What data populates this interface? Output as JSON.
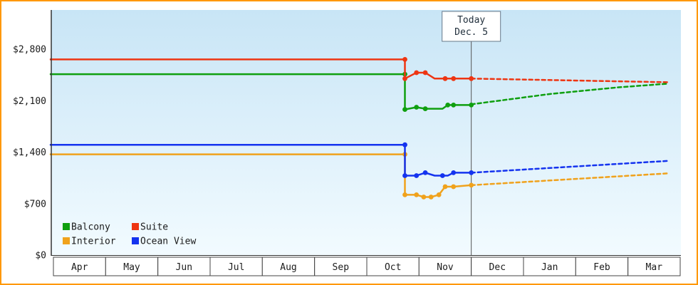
{
  "frame": {
    "border_color": "#ff9800",
    "background": "#ffffff"
  },
  "today_marker": {
    "line1": "Today",
    "line2": "Dec. 5",
    "month_position": 8.0,
    "box_border_color": "#66788a",
    "line_color": "#555555"
  },
  "plot_style": {
    "bg_gradient_top": "#c8e5f6",
    "bg_gradient_bottom": "#f2fbff",
    "axis_color": "#333333",
    "month_cell_border": "#444444",
    "month_cell_fill": "#ffffff"
  },
  "chart_data": {
    "type": "line",
    "ylim": [
      0,
      2800
    ],
    "yticks": [
      {
        "value": 0,
        "label": "$0"
      },
      {
        "value": 700,
        "label": "$700"
      },
      {
        "value": 1400,
        "label": "$1,400"
      },
      {
        "value": 2100,
        "label": "$2,100"
      },
      {
        "value": 2800,
        "label": "$2,800"
      }
    ],
    "x_months": [
      "Apr",
      "May",
      "Jun",
      "Jul",
      "Aug",
      "Sep",
      "Oct",
      "Nov",
      "Dec",
      "Jan",
      "Feb",
      "Mar"
    ],
    "legend_position": "bottom-left",
    "grid": false,
    "dashed_is_projection": true,
    "series": [
      {
        "name": "Balcony",
        "color": "#0f9f0f",
        "solid": [
          [
            -0.07,
            2460
          ],
          [
            6.73,
            2460
          ],
          [
            6.73,
            1980
          ],
          [
            6.95,
            2010
          ],
          [
            7.12,
            1990
          ],
          [
            7.3,
            1990
          ],
          [
            7.45,
            1990
          ],
          [
            7.55,
            2040
          ],
          [
            7.66,
            2040
          ],
          [
            8.0,
            2040
          ]
        ],
        "markers": [
          [
            6.73,
            2460
          ],
          [
            6.73,
            1980
          ],
          [
            6.95,
            2010
          ],
          [
            7.12,
            1990
          ],
          [
            7.55,
            2040
          ],
          [
            7.66,
            2040
          ],
          [
            8.0,
            2040
          ]
        ],
        "dashed": [
          [
            8.0,
            2050
          ],
          [
            9.5,
            2190
          ],
          [
            10.8,
            2280
          ],
          [
            11.75,
            2330
          ]
        ]
      },
      {
        "name": "Suite",
        "color": "#ee3512",
        "solid": [
          [
            -0.07,
            2660
          ],
          [
            6.73,
            2660
          ],
          [
            6.73,
            2400
          ],
          [
            6.95,
            2480
          ],
          [
            7.12,
            2480
          ],
          [
            7.3,
            2400
          ],
          [
            7.66,
            2400
          ],
          [
            8.0,
            2400
          ]
        ],
        "markers": [
          [
            6.73,
            2660
          ],
          [
            6.73,
            2400
          ],
          [
            6.95,
            2480
          ],
          [
            7.12,
            2480
          ],
          [
            7.5,
            2400
          ],
          [
            7.66,
            2400
          ],
          [
            8.0,
            2400
          ]
        ],
        "dashed": [
          [
            8.0,
            2400
          ],
          [
            11.75,
            2350
          ]
        ]
      },
      {
        "name": "Interior",
        "color": "#f0a21c",
        "solid": [
          [
            -0.07,
            1370
          ],
          [
            6.73,
            1370
          ],
          [
            6.73,
            820
          ],
          [
            6.95,
            820
          ],
          [
            7.09,
            790
          ],
          [
            7.23,
            790
          ],
          [
            7.38,
            820
          ],
          [
            7.5,
            930
          ],
          [
            7.66,
            930
          ],
          [
            8.0,
            950
          ]
        ],
        "markers": [
          [
            6.73,
            1370
          ],
          [
            6.73,
            820
          ],
          [
            6.95,
            820
          ],
          [
            7.09,
            790
          ],
          [
            7.23,
            790
          ],
          [
            7.38,
            820
          ],
          [
            7.5,
            930
          ],
          [
            7.66,
            930
          ],
          [
            8.0,
            950
          ]
        ],
        "dashed": [
          [
            8.0,
            950
          ],
          [
            11.75,
            1110
          ]
        ]
      },
      {
        "name": "Ocean View",
        "color": "#1433ef",
        "solid": [
          [
            -0.07,
            1500
          ],
          [
            6.73,
            1500
          ],
          [
            6.73,
            1080
          ],
          [
            6.95,
            1080
          ],
          [
            7.12,
            1120
          ],
          [
            7.3,
            1080
          ],
          [
            7.55,
            1080
          ],
          [
            7.66,
            1120
          ],
          [
            8.0,
            1120
          ]
        ],
        "markers": [
          [
            6.73,
            1500
          ],
          [
            6.73,
            1080
          ],
          [
            6.95,
            1080
          ],
          [
            7.12,
            1120
          ],
          [
            7.45,
            1080
          ],
          [
            7.66,
            1120
          ],
          [
            8.0,
            1120
          ]
        ],
        "dashed": [
          [
            8.0,
            1120
          ],
          [
            11.75,
            1280
          ]
        ]
      }
    ],
    "legend_order": [
      "Balcony",
      "Suite",
      "Interior",
      "Ocean View"
    ]
  }
}
